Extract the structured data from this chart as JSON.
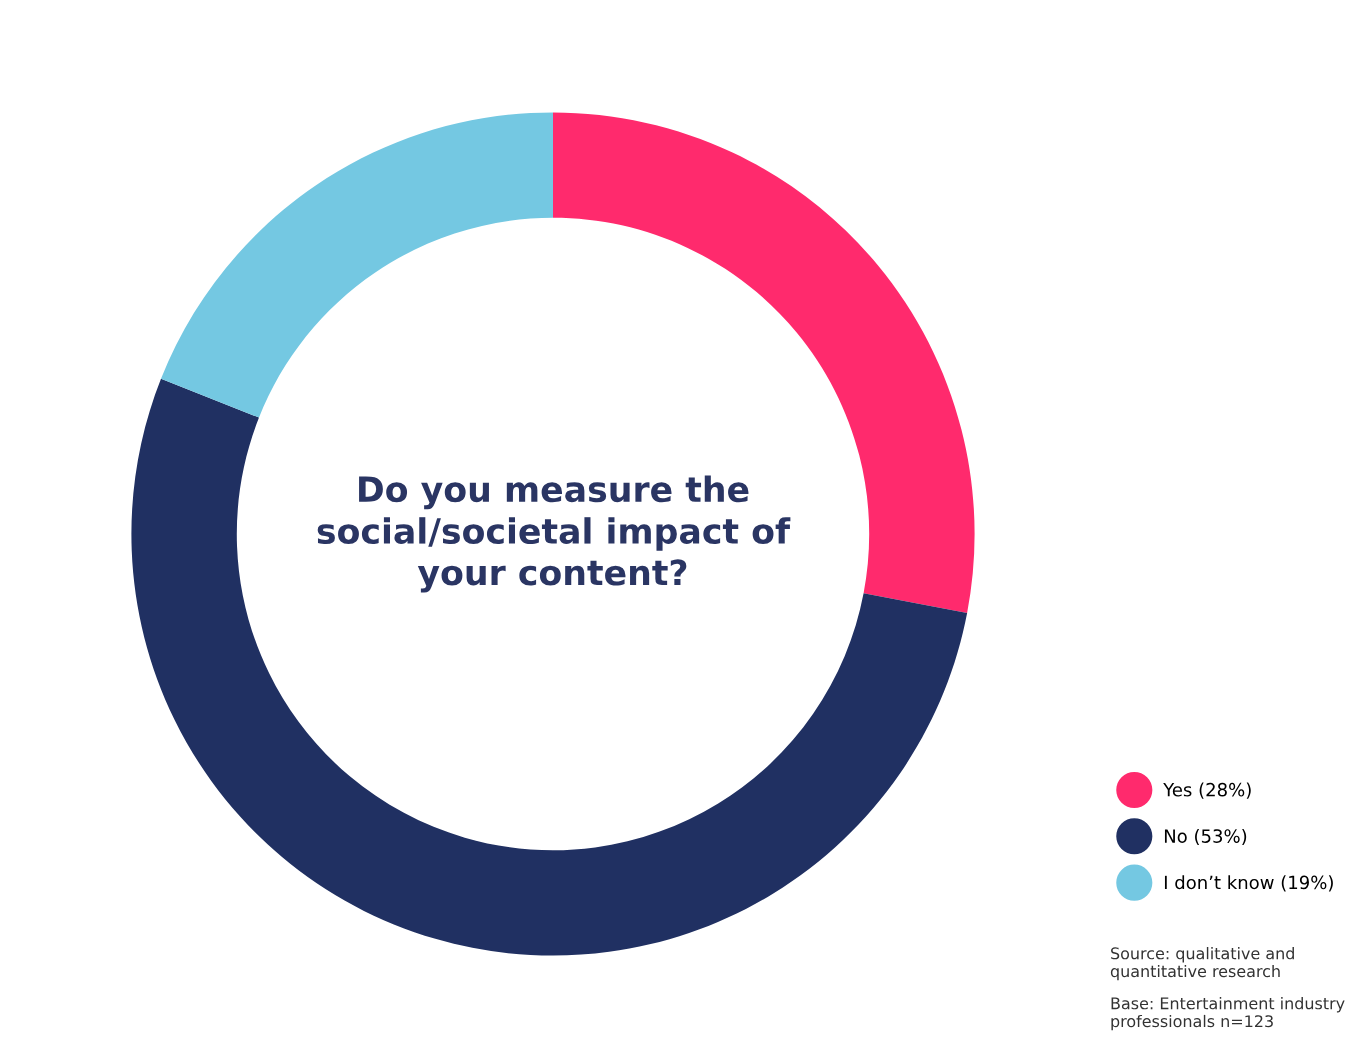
{
  "chart_data": {
    "type": "donut",
    "title": "Do you measure the social/societal impact of your content?",
    "categories": [
      "Yes (28%)",
      "No (53%)",
      "I don’t know (19%)"
    ],
    "values": [
      28,
      53,
      19
    ],
    "colors": [
      "#ff2a6d",
      "#203062",
      "#74c8e2"
    ],
    "legend": "bottom right",
    "annotations": [
      "Source: qualitative and quantitative research",
      "Base: Entertainment industry professionals n=123"
    ]
  }
}
